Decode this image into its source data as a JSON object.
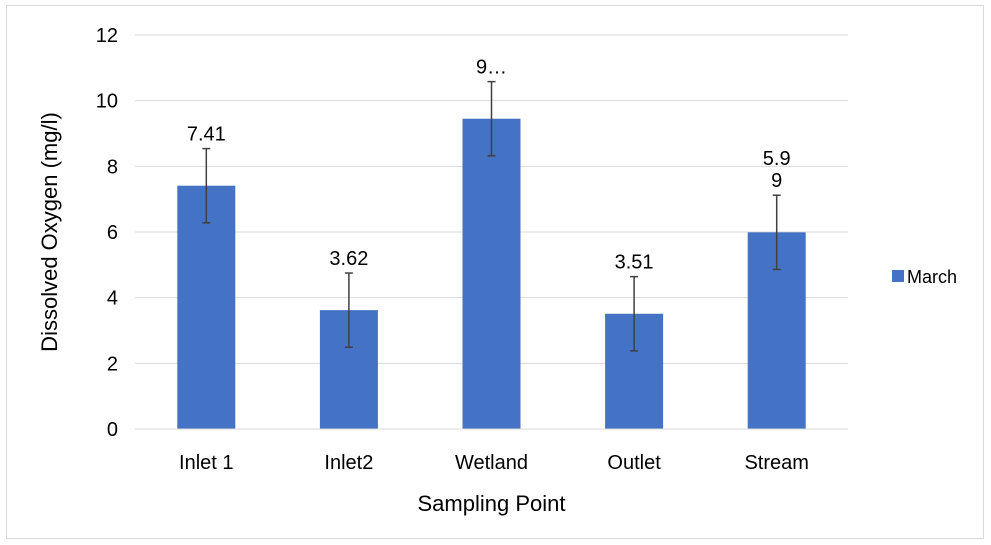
{
  "chart_data": {
    "type": "bar",
    "categories": [
      "Inlet 1",
      "Inlet2",
      "Wetland",
      "Outlet",
      "Stream"
    ],
    "series": [
      {
        "name": "March",
        "values": [
          7.41,
          3.62,
          9.45,
          3.51,
          5.99
        ],
        "error": [
          1.13,
          1.13,
          1.13,
          1.13,
          1.13
        ],
        "labels": [
          "7.41",
          "3.62",
          "9…",
          "3.51",
          "5.9\n9"
        ]
      }
    ],
    "title": "",
    "xlabel": "Sampling Point",
    "ylabel": "Dissolved Oxygen (mg/l)",
    "ylim": [
      0,
      12
    ],
    "yticks": [
      0,
      2,
      4,
      6,
      8,
      10,
      12
    ],
    "grid": true,
    "legend_position": "right",
    "colors": {
      "bar": "#4472C4",
      "grid": "#D9D9D9",
      "error_bar": "#404040"
    }
  }
}
